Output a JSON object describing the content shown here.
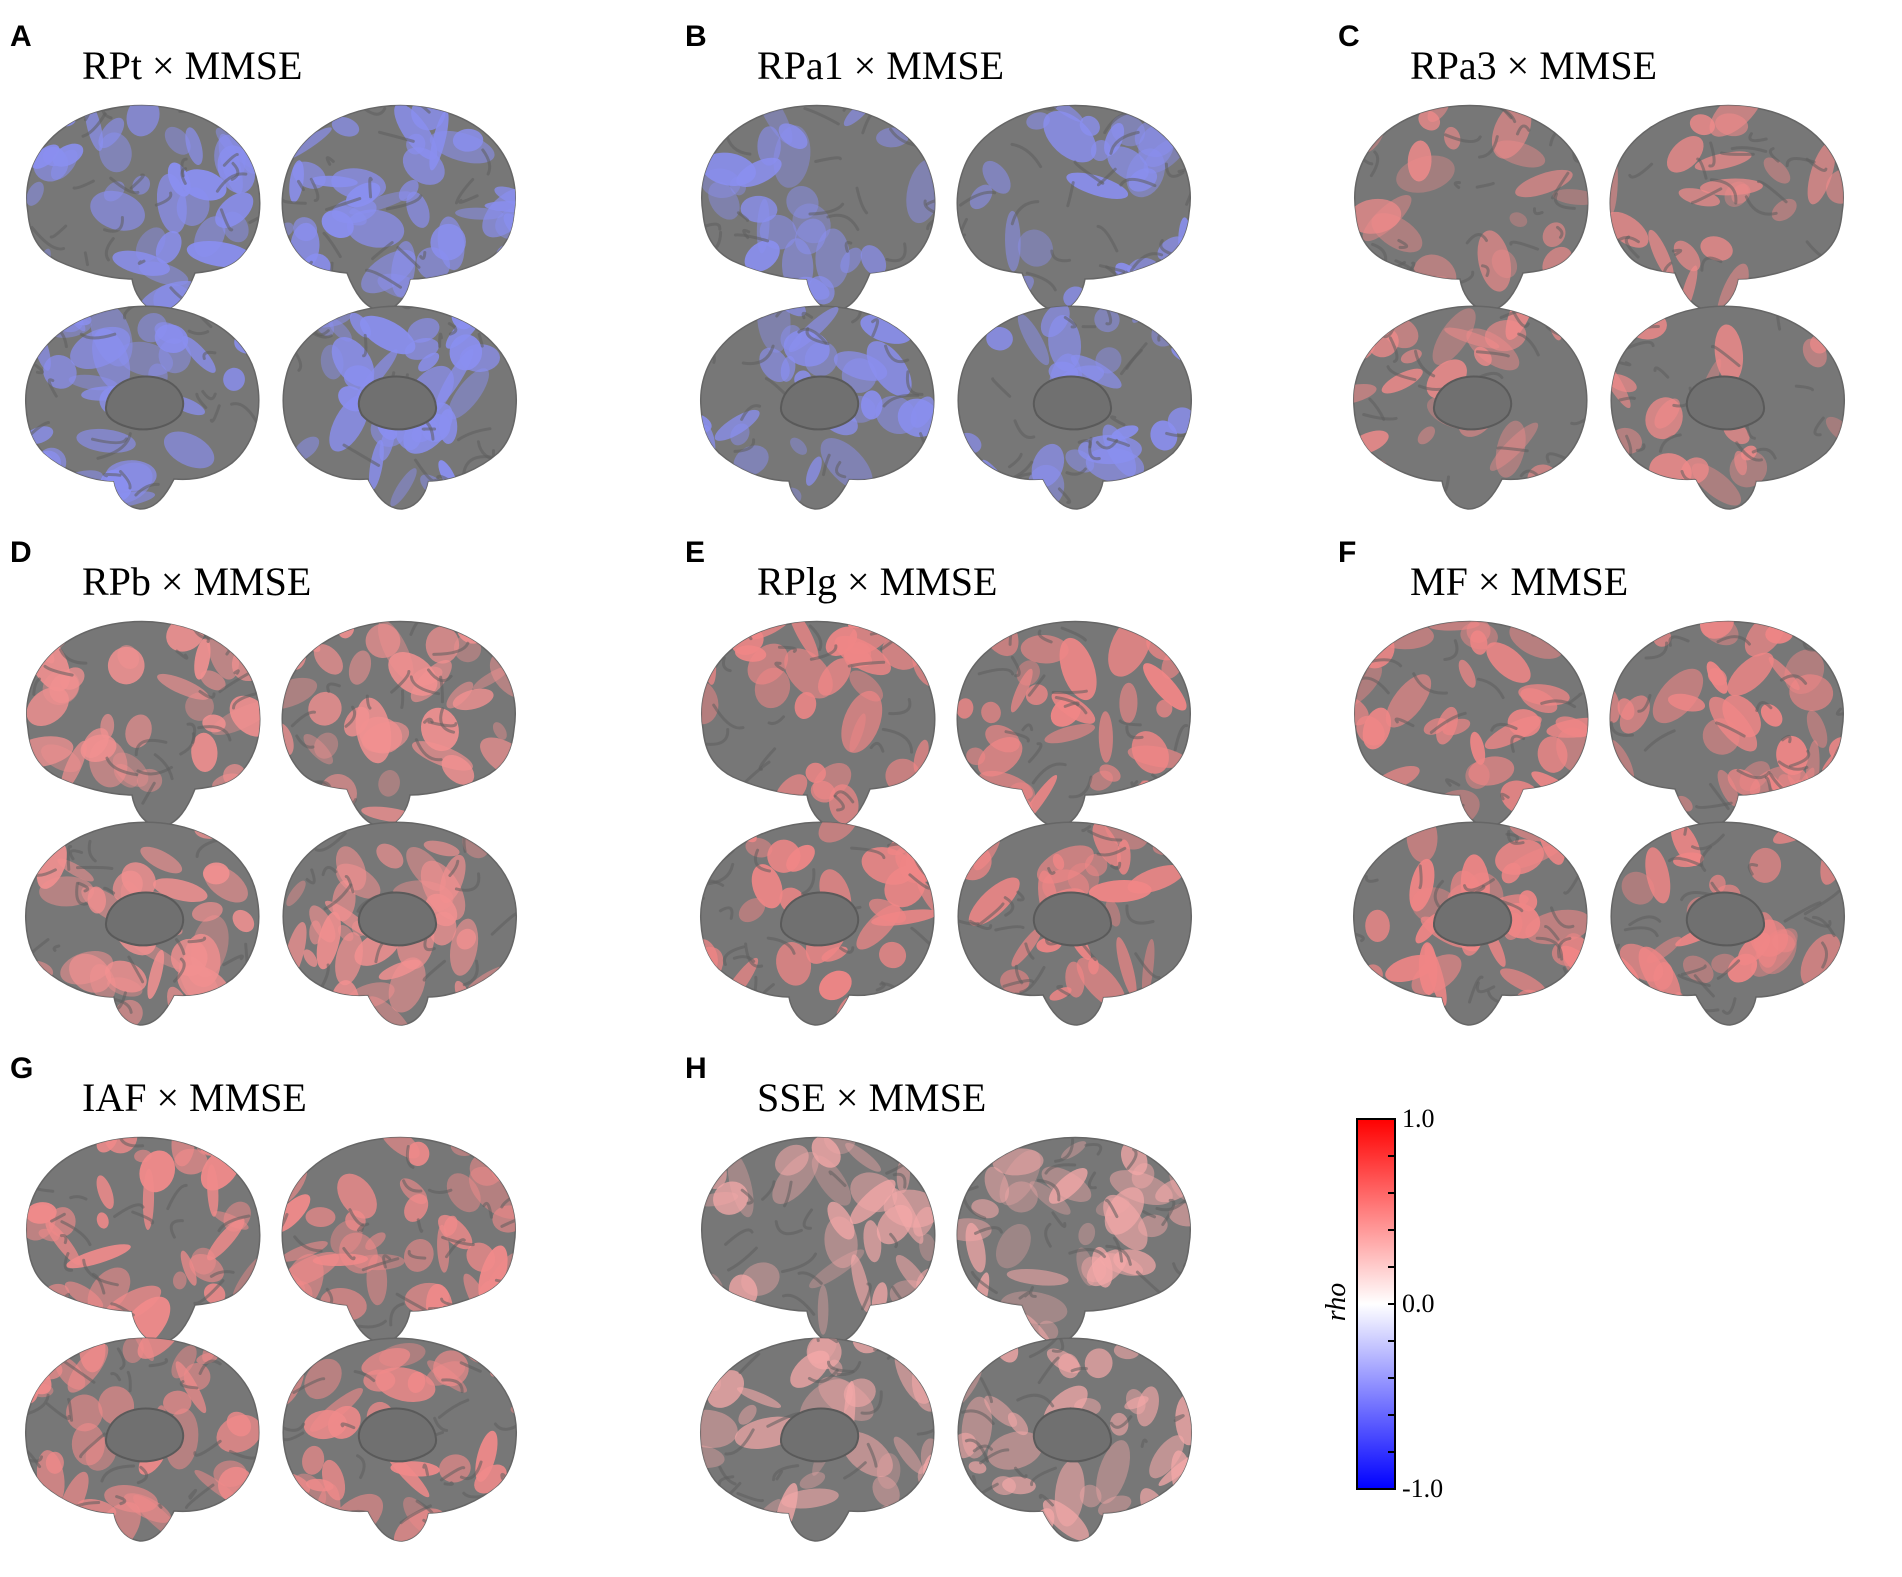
{
  "figure": {
    "panels": [
      {
        "letter": "A",
        "title": "RPt × MMSE",
        "overlay_color": "#8a8ff0",
        "overlay_level": 0.45,
        "coverage": 0.55
      },
      {
        "letter": "B",
        "title": "RPa1 × MMSE",
        "overlay_color": "#8a8ff0",
        "overlay_level": 0.4,
        "coverage": 0.35
      },
      {
        "letter": "C",
        "title": "RPa3 × MMSE",
        "overlay_color": "#f08a8a",
        "overlay_level": 0.35,
        "coverage": 0.25
      },
      {
        "letter": "D",
        "title": "RPb × MMSE",
        "overlay_color": "#f29090",
        "overlay_level": 0.4,
        "coverage": 0.5
      },
      {
        "letter": "E",
        "title": "RPlg × MMSE",
        "overlay_color": "#f08686",
        "overlay_level": 0.45,
        "coverage": 0.4
      },
      {
        "letter": "F",
        "title": "MF × MMSE",
        "overlay_color": "#f08686",
        "overlay_level": 0.45,
        "coverage": 0.5
      },
      {
        "letter": "G",
        "title": "IAF × MMSE",
        "overlay_color": "#f08a8a",
        "overlay_level": 0.45,
        "coverage": 0.55
      },
      {
        "letter": "H",
        "title": "SSE × MMSE",
        "overlay_color": "#f4a8a8",
        "overlay_level": 0.3,
        "coverage": 0.45
      }
    ],
    "colorbar": {
      "title": "rho",
      "max_label": "1.0",
      "mid_label": "0.0",
      "min_label": "-1.0",
      "color_top": "#ff0000",
      "color_mid": "#ffffff",
      "color_bottom": "#0000ff"
    },
    "brain_base_color": "#777777"
  }
}
